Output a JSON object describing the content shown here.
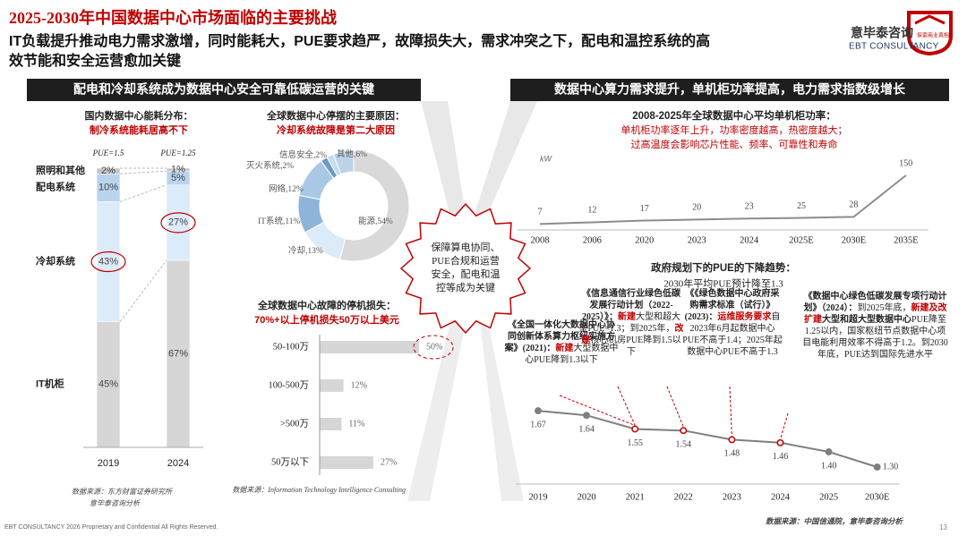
{
  "header": {
    "title": "2025-2030年中国数据中心市场面临的主要挑战",
    "subtitle_lines": [
      "IT负载提升推动电力需求激增，同时能耗大，PUE要求趋严，故障损失大，需求冲突之下，配电和温控系统的高",
      "效节能和安全运营愈加关键"
    ],
    "logo_cn": "意毕泰咨询",
    "logo_tag": "探索商业真相",
    "logo_en": "EBT CONSULTANCY"
  },
  "left_banner": "配电和冷却系统成为数据中心安全可靠低碳运营的关键",
  "right_banner": "数据中心算力需求提升，单机柜功率提高，电力需求指数级增长",
  "center_note_lines": [
    "保障算电协同、",
    "PUE合规和运营",
    "安全，配电和温",
    "控等成为关键"
  ],
  "chart_data": [
    {
      "type": "stacked_bar",
      "title": "国内数据中心能耗分布：",
      "subtitle": "制冷系统能耗居高不下",
      "categories": [
        "2019",
        "2024"
      ],
      "category_notes": [
        "PUE=1.5",
        "PUE=1.25"
      ],
      "ylim": [
        0,
        100
      ],
      "series": [
        {
          "name": "IT机柜",
          "color": "#d6d6d6",
          "values": [
            45,
            67
          ],
          "value_labels": [
            "45%",
            "67%"
          ]
        },
        {
          "name": "冷却系统",
          "color": "#dcebf8",
          "values": [
            43,
            27
          ],
          "value_labels": [
            "43%",
            "27%"
          ]
        },
        {
          "name": "配电系统",
          "color": "#b9d4ee",
          "values": [
            10,
            5
          ],
          "value_labels": [
            "10%",
            "5%"
          ]
        },
        {
          "name": "照明和其他",
          "color": "#c4c4c4",
          "values": [
            2,
            1
          ],
          "value_labels": [
            "2%",
            "1%"
          ]
        }
      ],
      "source_lines": [
        "数据来源：东方财富证券研究所",
        "意毕泰咨询分析"
      ]
    },
    {
      "type": "donut",
      "title": "全球数据中心停摆的主要原因：",
      "subtitle": "冷却系统故障是第二大原因",
      "values": [
        54,
        13,
        11,
        12,
        2,
        2,
        6
      ],
      "value_labels": [
        "能源,54%",
        "冷却,13%",
        "IT系统,11%",
        "网络,12%",
        "灭火系统,2%",
        "信息安全,2%",
        "其他,6%"
      ],
      "colors": [
        "#d9d9d9",
        "#dcebf8",
        "#8fb4d9",
        "#a9c8e6",
        "#6f98c4",
        "#c5dbef",
        "#bcd3ea"
      ]
    },
    {
      "type": "hbar",
      "title": "全球数据中心故障的停机损失：",
      "subtitle": "70%+以上停机损失50万以上美元",
      "categories": [
        "50-100万",
        "100-500万",
        ">500万",
        "50万以下"
      ],
      "values": [
        50,
        12,
        11,
        27
      ],
      "value_labels": [
        "50%",
        "12%",
        "11%",
        "27%"
      ],
      "color": "#d6d6d6",
      "xlim": [
        0,
        50
      ],
      "source": "数据来源：Information Technology Intelligence Consulting"
    },
    {
      "type": "line",
      "title": "2008-2025年全球数据中心平均单机柜功率：",
      "subtitle_lines": [
        "单机柜功率逐年上升，功率密度越高，热密度越大；",
        "过高温度会影响芯片性能、频率、可靠性和寿命"
      ],
      "unit": "kW",
      "categories": [
        "2008",
        "2006",
        "2020",
        "2023",
        "2024",
        "2025E",
        "2030E",
        "2035E"
      ],
      "values": [
        7,
        12,
        17,
        20,
        23,
        25,
        28,
        150
      ],
      "color": "#8c8c8c",
      "ylim": [
        0,
        200
      ]
    },
    {
      "type": "line",
      "title": "政府规划下的PUE的下降趋势：",
      "subtitle": "2030年平均PUE预计降至1.3",
      "categories": [
        "2019",
        "2020",
        "2021",
        "2022",
        "2023",
        "2024",
        "2025",
        "2030E"
      ],
      "values": [
        1.67,
        1.64,
        1.55,
        1.54,
        1.48,
        1.46,
        1.4,
        1.3
      ],
      "value_labels": [
        "1.67",
        "1.64",
        "1.55",
        "1.54",
        "1.48",
        "1.46",
        "1.40",
        "1.30"
      ],
      "color": "#7f7f7f",
      "point_colors": [
        "#7f7f7f",
        "#7f7f7f",
        "#c00000",
        "#c00000",
        "#c00000",
        "#c00000",
        "#7f7f7f",
        "#7f7f7f"
      ],
      "ylim": [
        1.2,
        1.7
      ],
      "annotations": [
        [
          {
            "text": "《全国一体化大数据中心协同创新体系算力枢纽实施方案》(2021)：",
            "bold": true
          },
          {
            "text": "新建",
            "red": true
          },
          {
            "text": "大型数据中心PUE降到1.3以下"
          }
        ],
        [
          {
            "text": "《信息通信行业绿色低碳发展行动计划（2022-2025）》：",
            "bold": true
          },
          {
            "text": "新建",
            "red": true
          },
          {
            "text": "大型和超大型PUE<1.3；到2025年，"
          },
          {
            "text": "改建",
            "red": true
          },
          {
            "text": "核心机房PUE降到1.5以下"
          }
        ],
        [
          {
            "text": "《《绿色数据中心政府采购需求标准（试行）》(2023)：",
            "bold": true
          },
          {
            "text": "运维服务要求",
            "red": true
          },
          {
            "text": "自2023年6月起数据中心PUE不高于1.4；2025年起数据中心PUE不高于1.3"
          }
        ],
        [
          {
            "text": "《数据中心绿色低碳发展专项行动计划》（2024）：",
            "bold": true
          },
          {
            "text": "到2025年底，"
          },
          {
            "text": "新建及改扩建",
            "red": true
          },
          {
            "text": "大型和超大型数据中心",
            "bold": true
          },
          {
            "text": "PUE降至1.25以内，国家枢纽节点数据中心项目电能利用效率不得高于1.2。到2030年底，PUE达到国际先进水平"
          }
        ]
      ],
      "source": "数据来源：中国信通院，意毕泰咨询分析"
    }
  ],
  "footer": {
    "text": "EBT CONSULTANCY 2026 Proprietary and Confidential All Rights Reserved.",
    "page": "13"
  }
}
